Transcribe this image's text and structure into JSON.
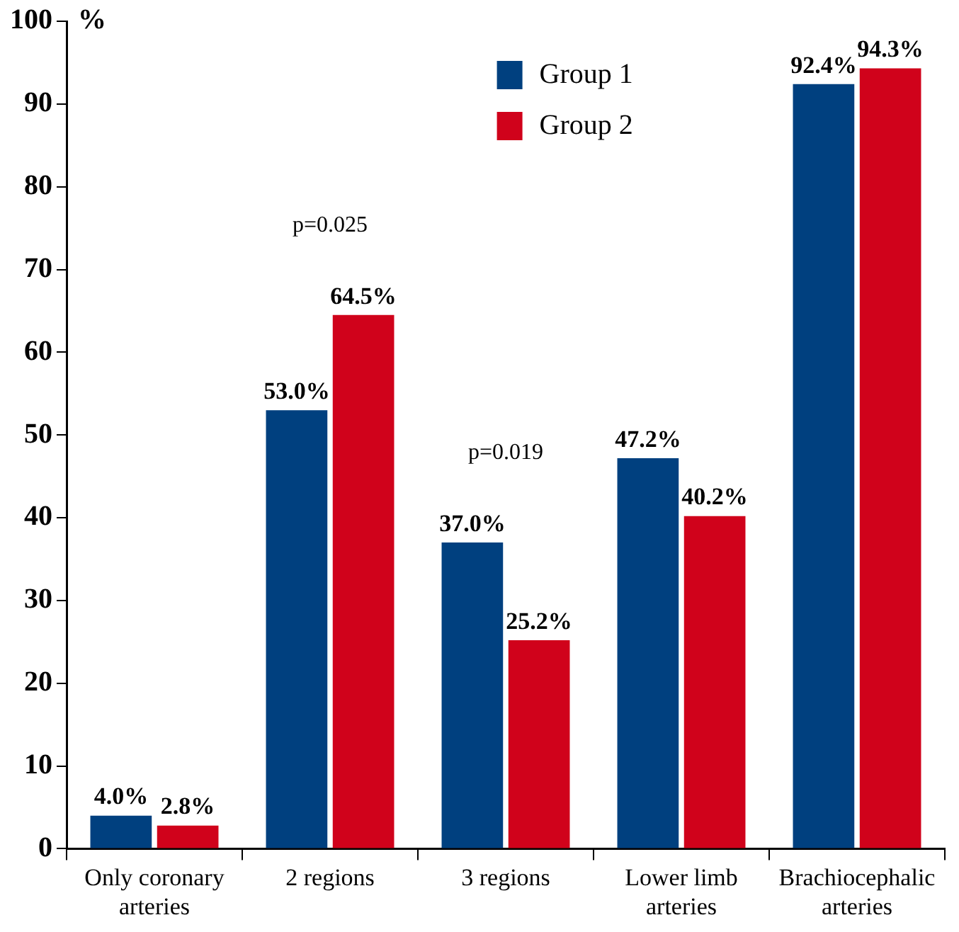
{
  "chart_data": {
    "type": "bar",
    "ylabel": "%",
    "categories": [
      "Only coronary arteries",
      "2 regions",
      "3 regions",
      "Lower limb arteries",
      "Brachiocephalic arteries"
    ],
    "series": [
      {
        "name": "Group 1",
        "color": "#00407f",
        "values": [
          4.0,
          53.0,
          37.0,
          47.2,
          92.4
        ],
        "value_labels": [
          "4.0%",
          "53.0%",
          "37.0%",
          "47.2%",
          "92.4%"
        ]
      },
      {
        "name": "Group 2",
        "color": "#d0021b",
        "values": [
          2.8,
          64.5,
          25.2,
          40.2,
          94.3
        ],
        "value_labels": [
          "2.8%",
          "64.5%",
          "25.2%",
          "40.2%",
          "94.3%"
        ]
      }
    ],
    "ylim": [
      0,
      100
    ],
    "yticks": [
      0,
      10,
      20,
      30,
      40,
      50,
      60,
      70,
      80,
      90,
      100
    ],
    "annotations": [
      "p=0.025",
      "p=0.019"
    ],
    "legend": "top",
    "grid": false
  }
}
